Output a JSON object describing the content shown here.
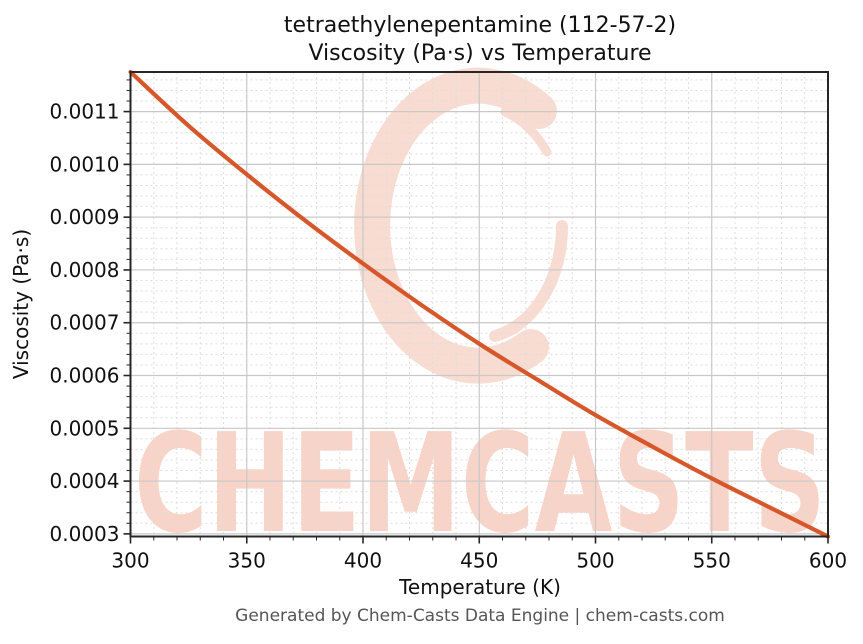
{
  "figure": {
    "title_line1": "tetraethylenepentamine (112-57-2)",
    "title_line2": "Viscosity (Pa·s) vs Temperature",
    "footer": "Generated by Chem-Casts Data Engine | chem-casts.com",
    "watermark_text": "CHEMCASTS"
  },
  "colors": {
    "line": "#d6572a",
    "watermark_text": "#f8d3c7",
    "watermark_swirl": "#f9dcd1",
    "grid_major": "#c8c8c8",
    "grid_minor": "#dddddd",
    "spine": "#262626",
    "tick_text": "#111111"
  },
  "chart_data": {
    "type": "line",
    "title": "tetraethylenepentamine (112-57-2) Viscosity (Pa·s) vs Temperature",
    "xlabel": "Temperature (K)",
    "ylabel": "Viscosity (Pa·s)",
    "xlim": [
      300,
      600
    ],
    "ylim": [
      0.000295,
      0.001175
    ],
    "xticks": [
      300,
      350,
      400,
      450,
      500,
      550,
      600
    ],
    "yticks": [
      0.0003,
      0.0004,
      0.0005,
      0.0006,
      0.0007,
      0.0008,
      0.0009,
      0.001,
      0.0011
    ],
    "ytick_labels": [
      "0.0003",
      "0.0004",
      "0.0005",
      "0.0006",
      "0.0007",
      "0.0008",
      "0.0009",
      "0.0010",
      "0.0011"
    ],
    "x_minor_step": 10,
    "y_minor_step": 2e-05,
    "grid": true,
    "legend": false,
    "series": [
      {
        "name": "Viscosity (Pa·s)",
        "x": [
          300,
          325,
          350,
          375,
          400,
          425,
          450,
          475,
          500,
          525,
          550,
          575,
          600
        ],
        "y": [
          0.001175,
          0.001073,
          0.000981,
          0.000894,
          0.000812,
          0.000734,
          0.00066,
          0.000592,
          0.000525,
          0.000464,
          0.000405,
          0.00035,
          0.000295
        ]
      }
    ]
  }
}
